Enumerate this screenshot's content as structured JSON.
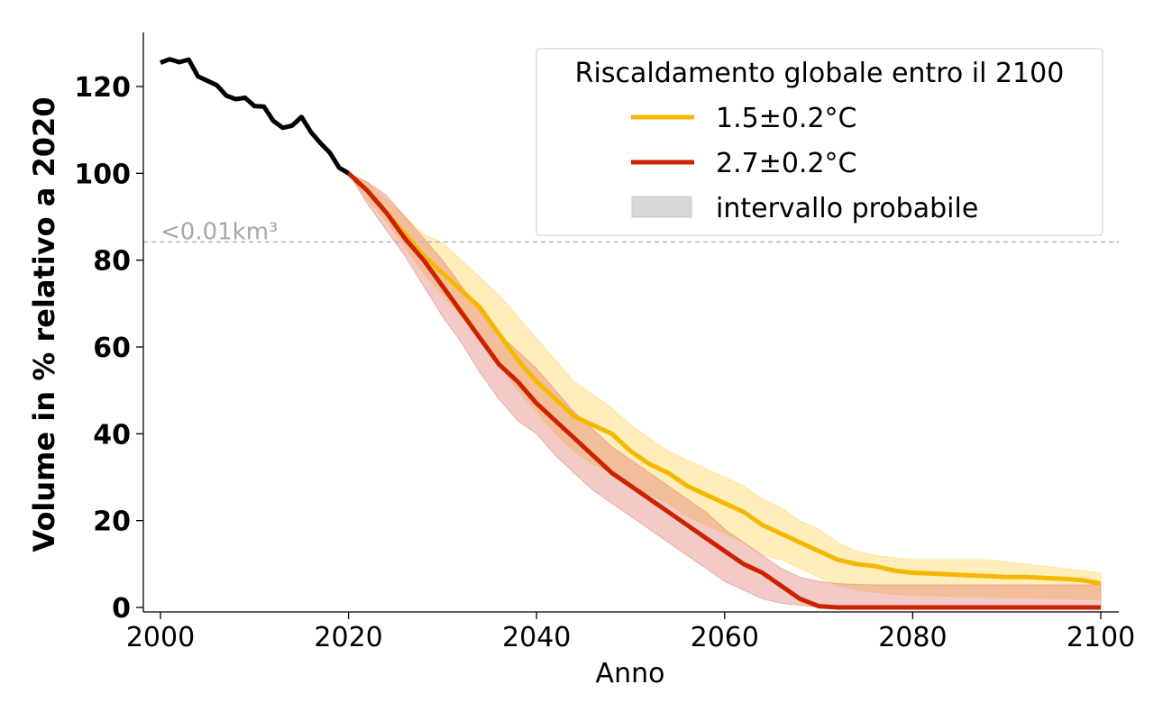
{
  "chart_data": {
    "type": "line",
    "xlabel": "Anno",
    "ylabel": "Volume in % relativo a 2020",
    "xlim": [
      1998,
      2102
    ],
    "ylim": [
      -1,
      132
    ],
    "x_ticks": [
      2000,
      2020,
      2040,
      2060,
      2080,
      2100
    ],
    "y_ticks": [
      0,
      20,
      40,
      60,
      80,
      100,
      120
    ],
    "grid": false,
    "legend": {
      "placement": "top-right",
      "title": "Riscaldamento globale entro il 2100",
      "entries": [
        "1.5±0.2°C",
        "2.7±0.2°C",
        "intervallo probabile"
      ]
    },
    "threshold": {
      "y": 84.2,
      "label": "<0.01km³",
      "color": "#b0b0b0"
    },
    "colors": {
      "history": "#000000",
      "s15": "#f5b800",
      "s27": "#cc2200",
      "band15": "#ffd766",
      "band27": "#e07a6e"
    },
    "history": {
      "x": [
        2000,
        2001,
        2002,
        2003,
        2004,
        2005,
        2006,
        2007,
        2008,
        2009,
        2010,
        2011,
        2012,
        2013,
        2014,
        2015,
        2016,
        2017,
        2018,
        2019,
        2020
      ],
      "y": [
        125.5,
        126.3,
        125.6,
        126.2,
        122.3,
        121.3,
        120.3,
        117.9,
        117.1,
        117.4,
        115.5,
        115.4,
        112.1,
        110.5,
        111.0,
        113.0,
        109.5,
        107.0,
        104.8,
        101.3,
        100.0
      ]
    },
    "series": [
      {
        "name": "1.5±0.2°C",
        "x": [
          2020,
          2022,
          2024,
          2026,
          2028,
          2030,
          2032,
          2034,
          2036,
          2038,
          2040,
          2042,
          2044,
          2046,
          2048,
          2050,
          2052,
          2054,
          2056,
          2058,
          2060,
          2062,
          2064,
          2066,
          2068,
          2070,
          2072,
          2074,
          2076,
          2078,
          2080,
          2082,
          2084,
          2086,
          2088,
          2090,
          2092,
          2094,
          2096,
          2098,
          2100
        ],
        "y": [
          100,
          96,
          91,
          86,
          81,
          77,
          73,
          69,
          63,
          57,
          52,
          48,
          44,
          42,
          40,
          36,
          33,
          31,
          28,
          26,
          24,
          22,
          19,
          17,
          15,
          13,
          11,
          10,
          9.5,
          8.5,
          8,
          7.8,
          7.6,
          7.4,
          7.2,
          7.0,
          7.0,
          6.8,
          6.6,
          6.3,
          5.5
        ],
        "lower": [
          100,
          94,
          89,
          83,
          77,
          72,
          67,
          62,
          56,
          50,
          45,
          40,
          36,
          33,
          31,
          28,
          26,
          24,
          21,
          19,
          17,
          15,
          12,
          11,
          9,
          7,
          5,
          4,
          3.5,
          3,
          2.8,
          2.7,
          2.6,
          2.5,
          2.4,
          2.3,
          2.2,
          2.1,
          2.0,
          1.9,
          1.8
        ],
        "upper": [
          100,
          98,
          94,
          90,
          86,
          84,
          80,
          76,
          72,
          67,
          62,
          57,
          52,
          49,
          46,
          42,
          39,
          36,
          34,
          32,
          30,
          28,
          25,
          23,
          20,
          18,
          15,
          13,
          12,
          11.5,
          11,
          11,
          11,
          11,
          11,
          10.5,
          10,
          9.5,
          9,
          8.5,
          8
        ]
      },
      {
        "name": "2.7±0.2°C",
        "x": [
          2020,
          2022,
          2024,
          2026,
          2028,
          2030,
          2032,
          2034,
          2036,
          2038,
          2040,
          2042,
          2044,
          2046,
          2048,
          2050,
          2052,
          2054,
          2056,
          2058,
          2060,
          2062,
          2064,
          2066,
          2068,
          2070,
          2072,
          2074,
          2076,
          2078,
          2080,
          2082,
          2084,
          2086,
          2088,
          2090,
          2092,
          2094,
          2096,
          2098,
          2100
        ],
        "y": [
          100,
          96,
          91,
          85,
          80,
          74,
          68,
          62,
          56,
          52,
          47,
          43,
          39,
          35,
          31,
          28,
          25,
          22,
          19,
          16,
          13,
          10,
          8,
          5,
          2,
          0.3,
          0,
          0,
          0,
          0,
          0,
          0,
          0,
          0,
          0,
          0,
          0,
          0,
          0,
          0,
          0
        ],
        "lower": [
          100,
          93,
          87,
          81,
          74,
          67,
          61,
          54,
          48,
          43,
          40,
          35,
          31,
          27,
          24,
          21,
          18,
          15,
          12,
          9,
          6,
          4,
          2,
          1,
          0.5,
          0,
          0,
          0,
          0,
          0,
          0,
          0,
          0,
          0,
          0,
          0,
          0,
          0,
          0,
          0,
          0
        ],
        "upper": [
          100,
          98,
          95,
          90,
          85,
          80,
          74,
          68,
          63,
          59,
          55,
          50,
          45,
          41,
          37,
          34,
          31,
          28,
          25,
          22,
          18,
          15,
          12,
          9,
          7,
          6,
          5.5,
          5.3,
          5.2,
          5.2,
          5.2,
          5.2,
          5.2,
          5.2,
          5.2,
          5.2,
          5.2,
          5.2,
          5.2,
          5.2,
          5.2
        ]
      }
    ]
  }
}
